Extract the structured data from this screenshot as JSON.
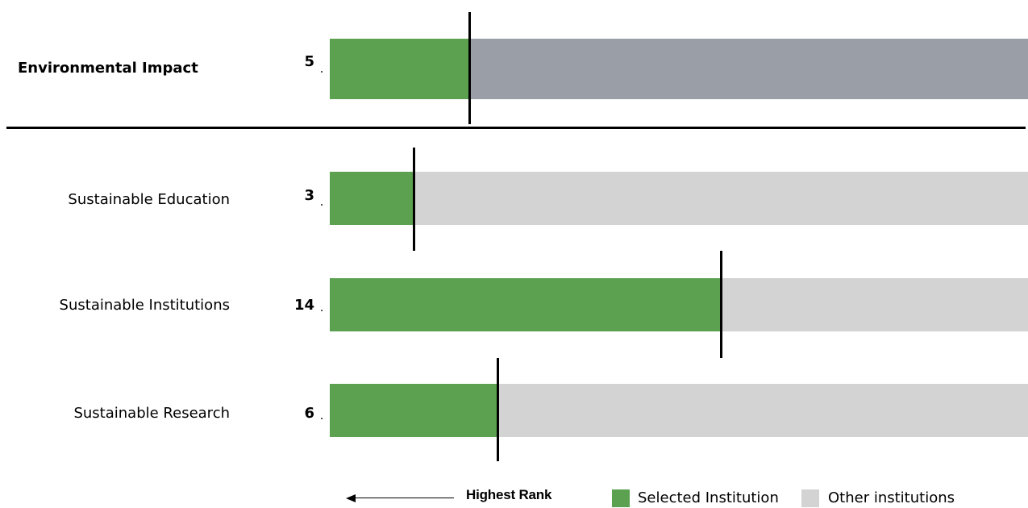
{
  "chart_data": {
    "type": "bar",
    "orientation": "horizontal",
    "categories": [
      "Environmental Impact",
      "Sustainable Education",
      "Sustainable Institutions",
      "Sustainable Research"
    ],
    "values": [
      5,
      3,
      14,
      6
    ],
    "rank_labels": [
      "5",
      "3",
      "14",
      "6"
    ],
    "xlim": [
      0,
      25
    ],
    "grid": false,
    "legend_position": "bottom-right",
    "legend": [
      "Selected Institution",
      "Other institutions"
    ],
    "annotation": "Highest Rank"
  },
  "colors": {
    "selected": "#5ba150",
    "other": "#d3d3d3",
    "other_main": "#9a9ea6",
    "marker": "#000000"
  },
  "icons": [
    "left-arrow-icon"
  ]
}
